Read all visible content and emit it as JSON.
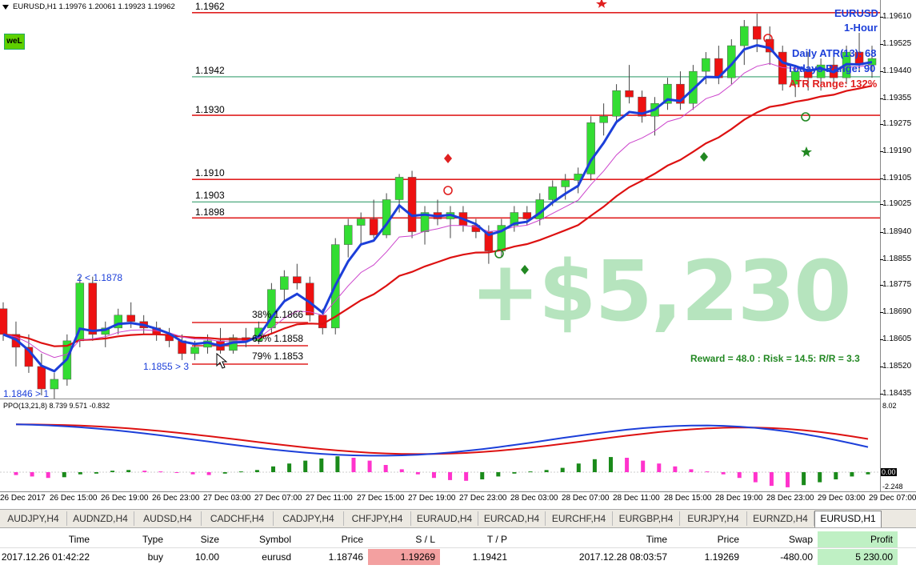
{
  "header": {
    "title": "EURUSD,H1  1.19976 1.20061 1.19923 1.19962",
    "badge": "weL"
  },
  "chart_info": {
    "symbol": "EURUSD",
    "timeframe": "1-Hour",
    "daily_atr": "Daily ATR(13): 68",
    "todays_range": "Todays Range: 90",
    "atr_range": "ATR Range: 132%"
  },
  "overlay": {
    "profit": "+$5,230",
    "rr": "Reward = 48.0 : Risk = 14.5: R/R = 3.3"
  },
  "levels": [
    {
      "label": "1.1962",
      "color": "#e02020"
    },
    {
      "label": "1.1942",
      "color": "#3aa070"
    },
    {
      "label": "1.1930",
      "color": "#e02020"
    },
    {
      "label": "1.1910",
      "color": "#e02020"
    },
    {
      "label": "1.1903",
      "color": "#3aa070"
    },
    {
      "label": "1.1898",
      "color": "#e02020"
    }
  ],
  "fib": {
    "f38": "38%  1.1866",
    "f62": "62%  1.1858",
    "f79": "79%  1.1853"
  },
  "annotations": {
    "a1": "2 < 1.1878",
    "a2": "1.1855 > 3",
    "a3": "1.1846 > 1"
  },
  "ppo": {
    "title": "PPO(13,21,8) 8.739 9.571 -0.832",
    "max": "8.02",
    "zero": "0.00",
    "min": "-2.248"
  },
  "chart_data": {
    "type": "candlestick",
    "price_ticks": [
      "1.19610",
      "1.19525",
      "1.19440",
      "1.19355",
      "1.19275",
      "1.19190",
      "1.19105",
      "1.19025",
      "1.18940",
      "1.18855",
      "1.18775",
      "1.18690",
      "1.18605",
      "1.18520",
      "1.18435"
    ],
    "time_ticks": [
      "26 Dec 2017",
      "26 Dec 15:00",
      "26 Dec 19:00",
      "26 Dec 23:00",
      "27 Dec 03:00",
      "27 Dec 07:00",
      "27 Dec 11:00",
      "27 Dec 15:00",
      "27 Dec 19:00",
      "27 Dec 23:00",
      "28 Dec 03:00",
      "28 Dec 07:00",
      "28 Dec 11:00",
      "28 Dec 15:00",
      "28 Dec 19:00",
      "28 Dec 23:00",
      "29 Dec 03:00",
      "29 Dec 07:00"
    ],
    "ohlc": [
      [
        1.187,
        1.1872,
        1.186,
        1.1862
      ],
      [
        1.1862,
        1.1866,
        1.1852,
        1.1858
      ],
      [
        1.1858,
        1.1862,
        1.185,
        1.1852
      ],
      [
        1.1852,
        1.1856,
        1.1843,
        1.1845
      ],
      [
        1.1845,
        1.185,
        1.184,
        1.1848
      ],
      [
        1.1848,
        1.1862,
        1.1846,
        1.186
      ],
      [
        1.186,
        1.188,
        1.1858,
        1.1878
      ],
      [
        1.1878,
        1.188,
        1.186,
        1.1862
      ],
      [
        1.1862,
        1.1866,
        1.1858,
        1.1864
      ],
      [
        1.1864,
        1.187,
        1.1862,
        1.1868
      ],
      [
        1.1868,
        1.1872,
        1.1864,
        1.1866
      ],
      [
        1.1866,
        1.1868,
        1.1862,
        1.1864
      ],
      [
        1.1864,
        1.1866,
        1.186,
        1.1862
      ],
      [
        1.1862,
        1.1864,
        1.1858,
        1.186
      ],
      [
        1.186,
        1.1862,
        1.1854,
        1.1856
      ],
      [
        1.1856,
        1.186,
        1.1854,
        1.1858
      ],
      [
        1.1858,
        1.1862,
        1.1856,
        1.186
      ],
      [
        1.186,
        1.1864,
        1.1856,
        1.1857
      ],
      [
        1.1857,
        1.1862,
        1.1856,
        1.1861
      ],
      [
        1.1861,
        1.1864,
        1.1858,
        1.186
      ],
      [
        1.186,
        1.1866,
        1.1859,
        1.1864
      ],
      [
        1.1864,
        1.1878,
        1.1862,
        1.1876
      ],
      [
        1.1876,
        1.1882,
        1.1872,
        1.188
      ],
      [
        1.188,
        1.1884,
        1.1876,
        1.1878
      ],
      [
        1.1878,
        1.188,
        1.1866,
        1.1868
      ],
      [
        1.1868,
        1.187,
        1.1862,
        1.1864
      ],
      [
        1.1864,
        1.1892,
        1.1862,
        1.189
      ],
      [
        1.189,
        1.1898,
        1.1886,
        1.1896
      ],
      [
        1.1896,
        1.19,
        1.189,
        1.1898
      ],
      [
        1.1898,
        1.1904,
        1.1892,
        1.1893
      ],
      [
        1.1893,
        1.1906,
        1.1892,
        1.1904
      ],
      [
        1.1904,
        1.1912,
        1.19,
        1.1911
      ],
      [
        1.1911,
        1.1913,
        1.1892,
        1.1894
      ],
      [
        1.1894,
        1.1902,
        1.189,
        1.19
      ],
      [
        1.19,
        1.1904,
        1.1896,
        1.1898
      ],
      [
        1.1898,
        1.1902,
        1.1892,
        1.19
      ],
      [
        1.19,
        1.1902,
        1.1894,
        1.1896
      ],
      [
        1.1896,
        1.1898,
        1.1892,
        1.1894
      ],
      [
        1.1894,
        1.1896,
        1.1884,
        1.1888
      ],
      [
        1.1888,
        1.1898,
        1.1886,
        1.1896
      ],
      [
        1.1896,
        1.1902,
        1.1894,
        1.19
      ],
      [
        1.19,
        1.1902,
        1.1896,
        1.1898
      ],
      [
        1.1898,
        1.1906,
        1.1896,
        1.1904
      ],
      [
        1.1904,
        1.191,
        1.1902,
        1.1908
      ],
      [
        1.1908,
        1.1912,
        1.1904,
        1.191
      ],
      [
        1.191,
        1.1914,
        1.1906,
        1.1912
      ],
      [
        1.1912,
        1.193,
        1.191,
        1.1928
      ],
      [
        1.1928,
        1.1934,
        1.1924,
        1.193
      ],
      [
        1.193,
        1.194,
        1.1928,
        1.1938
      ],
      [
        1.1938,
        1.1946,
        1.1934,
        1.1936
      ],
      [
        1.1936,
        1.1938,
        1.1928,
        1.193
      ],
      [
        1.193,
        1.1936,
        1.1924,
        1.1934
      ],
      [
        1.1934,
        1.1942,
        1.1932,
        1.194
      ],
      [
        1.194,
        1.1944,
        1.1932,
        1.1934
      ],
      [
        1.1934,
        1.1946,
        1.1932,
        1.1944
      ],
      [
        1.1944,
        1.195,
        1.194,
        1.1948
      ],
      [
        1.1948,
        1.1952,
        1.194,
        1.1942
      ],
      [
        1.1942,
        1.1954,
        1.194,
        1.1952
      ],
      [
        1.1952,
        1.196,
        1.1946,
        1.1958
      ],
      [
        1.1958,
        1.1962,
        1.195,
        1.1954
      ],
      [
        1.1954,
        1.1958,
        1.1946,
        1.195
      ],
      [
        1.195,
        1.1952,
        1.1938,
        1.194
      ],
      [
        1.194,
        1.1946,
        1.1936,
        1.1944
      ],
      [
        1.1944,
        1.195,
        1.1938,
        1.1942
      ],
      [
        1.1942,
        1.1948,
        1.1938,
        1.1946
      ],
      [
        1.1946,
        1.195,
        1.194,
        1.1942
      ],
      [
        1.1942,
        1.1952,
        1.194,
        1.195
      ],
      [
        1.195,
        1.1956,
        1.1944,
        1.1946
      ],
      [
        1.1946,
        1.1952,
        1.1942,
        1.1948
      ]
    ],
    "ppo_hist": [
      -0.4,
      -0.6,
      -0.8,
      -0.7,
      -0.3,
      -0.2,
      0.2,
      0.3,
      0.2,
      0.1,
      -0.1,
      -0.3,
      -0.4,
      -0.2,
      0.1,
      0.3,
      0.8,
      1.2,
      1.6,
      1.9,
      2.2,
      2.0,
      1.6,
      1.0,
      0.4,
      -0.3,
      -0.8,
      -1.1,
      -1.2,
      -1.0,
      -0.6,
      -0.2,
      0.1,
      0.3,
      0.6,
      1.2,
      1.8,
      2.1,
      2.0,
      1.6,
      1.2,
      0.8,
      0.4,
      0.1,
      -0.3,
      -0.8,
      -1.4,
      -1.9,
      -2.1,
      -1.8,
      -1.4,
      -1.0,
      -0.6,
      -0.3
    ]
  },
  "tabs": [
    "AUDJPY,H4",
    "AUDNZD,H4",
    "AUDSD,H4",
    "CADCHF,H4",
    "CADJPY,H4",
    "CHFJPY,H4",
    "EURAUD,H4",
    "EURCAD,H4",
    "EURCHF,H4",
    "EURGBP,H4",
    "EURJPY,H4",
    "EURNZD,H4",
    "EURUSD,H1"
  ],
  "table": {
    "headers": [
      "Time",
      "Type",
      "Size",
      "Symbol",
      "Price",
      "S / L",
      "T / P",
      "Time",
      "Price",
      "Swap",
      "Profit"
    ],
    "row": [
      "2017.12.26 01:42:22",
      "buy",
      "10.00",
      "eurusd",
      "1.18746",
      "1.19269",
      "1.19421",
      "2017.12.28 08:03:57",
      "1.19269",
      "-480.00",
      "5 230.00"
    ]
  }
}
